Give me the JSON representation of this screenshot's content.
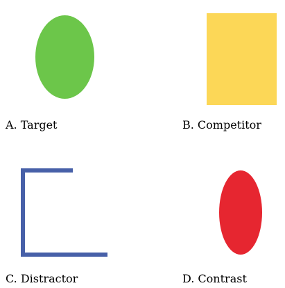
{
  "options": [
    {
      "letter": "A",
      "label": "A. Target",
      "shape": "ellipse",
      "color": "#6cc64a"
    },
    {
      "letter": "B",
      "label": "B. Competitor",
      "shape": "rectangle",
      "color": "#fcd757"
    },
    {
      "letter": "C",
      "label": "C. Distractor",
      "shape": "bracket-outline",
      "color": "#4760a8"
    },
    {
      "letter": "D",
      "label": "D. Contrast",
      "shape": "ellipse",
      "color": "#e62630"
    }
  ]
}
